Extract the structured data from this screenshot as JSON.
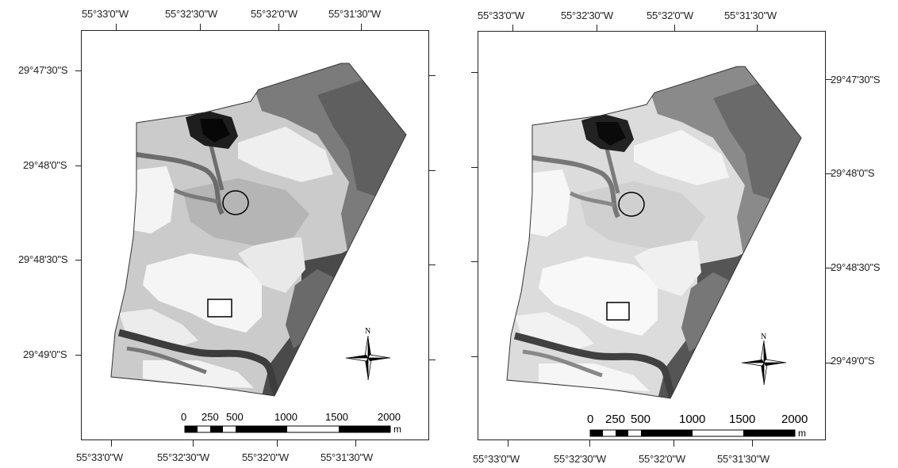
{
  "maps": [
    {
      "id": "left",
      "longitude_labels": [
        "55°33'0\"W",
        "55°32'30\"W",
        "55°32'0\"W",
        "55°31'30\"W"
      ],
      "latitude_labels": [
        "29°47'30\"S",
        "29°48'0\"S",
        "29°48'30\"S",
        "29°49'0\"S"
      ],
      "latitude_label_side": "left",
      "scale_bar": {
        "ticks": [
          "0",
          "250",
          "500",
          "1000",
          "1500",
          "2000"
        ],
        "unit": "m"
      },
      "north_arrow": {
        "label": "N"
      },
      "markers": [
        "circle",
        "rectangle"
      ]
    },
    {
      "id": "right",
      "longitude_labels": [
        "55°33'0\"W",
        "55°32'30\"W",
        "55°32'0\"W",
        "55°31'30\"W"
      ],
      "latitude_labels": [
        "29°47'30\"S",
        "29°48'0\"S",
        "29°48'30\"S",
        "29°49'0\"S"
      ],
      "latitude_label_side": "right",
      "scale_bar": {
        "ticks": [
          "0",
          "250",
          "500",
          "1000",
          "1500",
          "2000"
        ],
        "unit": "m"
      },
      "north_arrow": {
        "label": "N"
      },
      "markers": [
        "circle",
        "rectangle"
      ]
    }
  ]
}
